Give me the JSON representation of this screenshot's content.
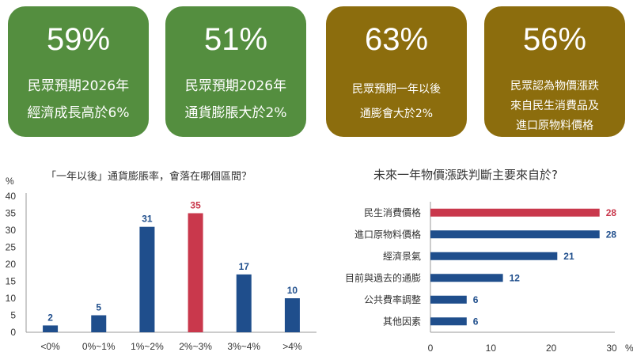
{
  "cards": [
    {
      "percent": "59%",
      "lines": [
        "民眾預期2026年",
        "經濟成長高於6%"
      ],
      "color": "#548e3f"
    },
    {
      "percent": "51%",
      "lines": [
        "民眾預期2026年",
        "通貨膨脹大於2%"
      ],
      "color": "#548e3f"
    },
    {
      "percent": "63%",
      "lines": [
        "民眾預期一年以後",
        "通膨會大於2%"
      ],
      "color": "#8c6d0d"
    },
    {
      "percent": "56%",
      "lines": [
        "民眾認為物價漲跌",
        "來自民生消費品及",
        "進口原物料價格"
      ],
      "color": "#8c6d0d"
    }
  ],
  "chart_data": [
    {
      "type": "bar",
      "title": "「一年以後」通貨膨脹率，會落在哪個區間？",
      "ylabel": "%",
      "categories": [
        "<0%",
        "0%~1%",
        "1%~2%",
        "2%~3%",
        "3%~4%",
        ">4%"
      ],
      "values": [
        2,
        5,
        31,
        35,
        17,
        10
      ],
      "ylim": [
        0,
        40
      ],
      "yticks": [
        0,
        5,
        10,
        15,
        20,
        25,
        30,
        35,
        40
      ],
      "bar_color": "#1f4e8c",
      "highlight_color": "#c9384c",
      "highlight_index": 3
    },
    {
      "type": "bar",
      "orientation": "horizontal",
      "title": "未來一年物價漲跌判斷主要來自於?",
      "xlabel": "%",
      "categories": [
        "民生消費價格",
        "進口原物料價格",
        "經濟景氣",
        "目前與過去的通膨",
        "公共費率調整",
        "其他因素"
      ],
      "values": [
        28,
        28,
        21,
        12,
        6,
        6
      ],
      "xlim": [
        0,
        30
      ],
      "xticks": [
        0,
        10,
        20,
        30
      ],
      "bar_color": "#1f4e8c",
      "highlight_color": "#c9384c",
      "highlight_index": 0
    }
  ]
}
